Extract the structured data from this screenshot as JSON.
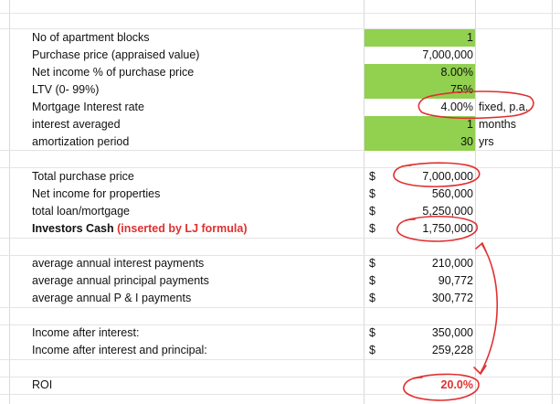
{
  "inputs": [
    {
      "label": "No of apartment blocks",
      "value": "1",
      "unit": ""
    },
    {
      "label": "Purchase price (appraised value)",
      "value": "7,000,000",
      "unit": ""
    },
    {
      "label": "Net income % of purchase price",
      "value": "8.00%",
      "unit": ""
    },
    {
      "label": "LTV (0- 99%)",
      "value": "75%",
      "unit": ""
    },
    {
      "label": "Mortgage Interest rate",
      "value": "4.00%",
      "unit": "fixed, p.a."
    },
    {
      "label": "interest averaged",
      "value": "1",
      "unit": "months"
    },
    {
      "label": "amortization period",
      "value": "30",
      "unit": "yrs"
    }
  ],
  "summary": [
    {
      "label": "Total purchase price",
      "currency": "$",
      "value": "7,000,000"
    },
    {
      "label": "Net income for properties",
      "currency": "$",
      "value": "560,000"
    },
    {
      "label": "total loan/mortgage",
      "currency": "$",
      "value": "5,250,000"
    },
    {
      "label": "Investors Cash",
      "note": "(inserted by LJ formula)",
      "currency": "$",
      "value": "1,750,000"
    }
  ],
  "payments": [
    {
      "label": "average annual interest payments",
      "currency": "$",
      "value": "210,000"
    },
    {
      "label": "average annual principal payments",
      "currency": "$",
      "value": "90,772"
    },
    {
      "label": "average annual P & I payments",
      "currency": "$",
      "value": "300,772"
    }
  ],
  "income": [
    {
      "label": "Income after interest:",
      "currency": "$",
      "value": "350,000"
    },
    {
      "label": "Income after interest and principal:",
      "currency": "$",
      "value": "259,228"
    }
  ],
  "roi": {
    "label": "ROI",
    "value": "20.0%"
  },
  "colors": {
    "input_fill": "#92d050",
    "annotation": "#e03030",
    "gridline": "#d9d9d9"
  }
}
